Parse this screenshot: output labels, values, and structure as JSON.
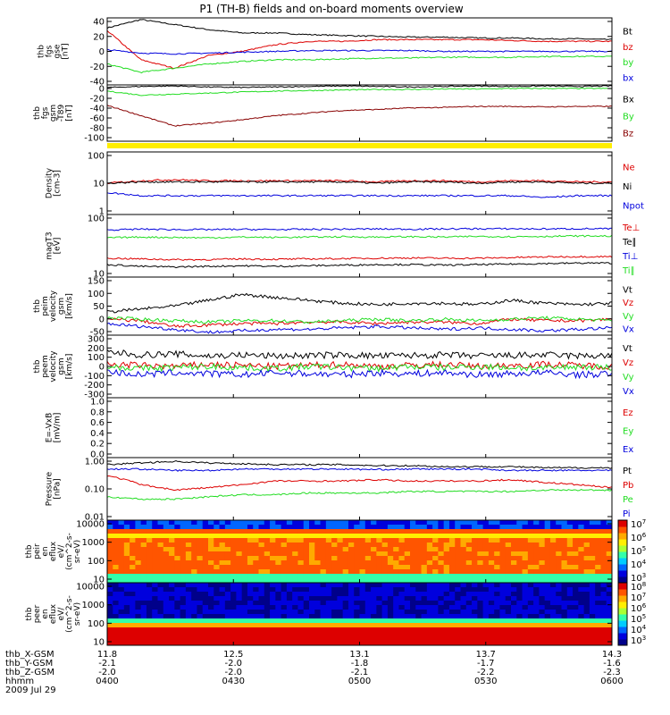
{
  "title": "P1 (TH-B) fields and on-board moments overview",
  "colors": {
    "black": "#000000",
    "red": "#dd0000",
    "green": "#22dd22",
    "blue": "#0000dd",
    "brown": "#880000",
    "yellow": "#ffee00"
  },
  "chart_data": [
    {
      "id": "fgs",
      "type": "line",
      "ylabel": [
        "thb",
        "fgs",
        "gse",
        "[nT]"
      ],
      "ylim": [
        -40,
        40
      ],
      "yticks": [
        "40",
        "20",
        "0",
        "-20",
        "-40"
      ],
      "series": [
        {
          "name": "Bt",
          "color": "black",
          "values": [
            28,
            38,
            32,
            26,
            22,
            22,
            20,
            19,
            18,
            17,
            17,
            16,
            16,
            15,
            15,
            14
          ]
        },
        {
          "name": "bz",
          "color": "red",
          "values": [
            25,
            -10,
            -20,
            -5,
            0,
            8,
            12,
            12,
            14,
            14,
            14,
            14,
            13,
            12,
            12,
            12
          ]
        },
        {
          "name": "by",
          "color": "green",
          "values": [
            -15,
            -25,
            -20,
            -15,
            -12,
            -10,
            -10,
            -9,
            -8,
            -8,
            -7,
            -7,
            -7,
            -6,
            -6,
            -6
          ]
        },
        {
          "name": "bx",
          "color": "blue",
          "values": [
            2,
            -2,
            -3,
            -2,
            -1,
            0,
            1,
            1,
            1,
            1,
            0,
            0,
            0,
            0,
            0,
            0
          ]
        }
      ]
    },
    {
      "id": "fgs_gsm",
      "type": "line",
      "ylabel": [
        "thb",
        "fgs",
        "gsm",
        "-T89",
        "[nT]"
      ],
      "ylim": [
        -110,
        0
      ],
      "yticks": [
        "0",
        "-20",
        "-40",
        "-60",
        "-80",
        "-100"
      ],
      "series": [
        {
          "name": "Bx",
          "color": "black",
          "values": [
            -5,
            -3,
            -2,
            -4,
            -5,
            -4,
            -3,
            -2,
            -3,
            -4,
            -3,
            -2,
            -3,
            -2,
            -3,
            -2
          ]
        },
        {
          "name": "By",
          "color": "green",
          "values": [
            -12,
            -20,
            -18,
            -16,
            -14,
            -12,
            -11,
            -10,
            -9,
            -9,
            -8,
            -8,
            -7,
            -7,
            -7,
            -7
          ]
        },
        {
          "name": "Bz",
          "color": "brown",
          "values": [
            -40,
            -60,
            -80,
            -75,
            -68,
            -60,
            -55,
            -50,
            -48,
            -45,
            -44,
            -42,
            -42,
            -43,
            -42,
            -42
          ]
        }
      ]
    },
    {
      "id": "density",
      "type": "line",
      "scale": "log",
      "ylabel": [
        "Density",
        "[cm-3]"
      ],
      "ylim": [
        1,
        100
      ],
      "yticks": [
        "100",
        "10",
        "1"
      ],
      "series": [
        {
          "name": "Ne",
          "color": "red",
          "values": [
            10,
            12,
            13,
            12,
            12,
            12,
            12,
            12,
            11,
            12,
            12,
            11,
            12,
            12,
            11,
            11
          ]
        },
        {
          "name": "Ni",
          "color": "black",
          "values": [
            10,
            11,
            11,
            11,
            11,
            11,
            11,
            11,
            10,
            11,
            11,
            10,
            11,
            11,
            10,
            10
          ]
        },
        {
          "name": "Npot",
          "color": "blue",
          "values": [
            5,
            4,
            4,
            4,
            4,
            4,
            4,
            4,
            4,
            4,
            4,
            4,
            4,
            3.5,
            4,
            4
          ]
        }
      ]
    },
    {
      "id": "temp",
      "type": "line",
      "scale": "log",
      "ylabel": [
        "magT3",
        "[eV]"
      ],
      "ylim": [
        10,
        1000
      ],
      "yticks": [
        "100",
        "10"
      ],
      "series": [
        {
          "name": "Te⊥",
          "color": "red",
          "values": [
            40,
            38,
            36,
            36,
            38,
            37,
            38,
            39,
            40,
            41,
            40,
            40,
            42,
            44,
            45,
            45
          ]
        },
        {
          "name": "Te∥",
          "color": "black",
          "values": [
            25,
            22,
            21,
            22,
            23,
            22,
            23,
            24,
            25,
            25,
            24,
            25,
            26,
            27,
            28,
            28
          ]
        },
        {
          "name": "Ti⊥",
          "color": "blue",
          "values": [
            320,
            340,
            330,
            330,
            335,
            330,
            335,
            340,
            345,
            340,
            345,
            350,
            350,
            345,
            350,
            350
          ]
        },
        {
          "name": "Ti∥",
          "color": "green",
          "values": [
            180,
            190,
            185,
            180,
            190,
            185,
            190,
            195,
            190,
            195,
            190,
            200,
            195,
            200,
            205,
            205
          ]
        }
      ]
    },
    {
      "id": "peim",
      "type": "line",
      "ylabel": [
        "thb",
        "peim",
        "velocity",
        "gsm",
        "[km/s]"
      ],
      "ylim": [
        -50,
        150
      ],
      "yticks": [
        "150",
        "100",
        "50",
        "0",
        "-50"
      ],
      "series": [
        {
          "name": "Vt",
          "color": "black",
          "values": [
            30,
            40,
            50,
            70,
            90,
            80,
            70,
            60,
            55,
            60,
            60,
            55,
            70,
            60,
            55,
            60
          ]
        },
        {
          "name": "Vz",
          "color": "red",
          "values": [
            5,
            0,
            -20,
            -15,
            -10,
            -10,
            -5,
            -5,
            -10,
            -5,
            -5,
            -10,
            5,
            0,
            0,
            5
          ]
        },
        {
          "name": "Vy",
          "color": "green",
          "values": [
            10,
            5,
            0,
            -5,
            0,
            0,
            -5,
            0,
            5,
            0,
            5,
            0,
            5,
            10,
            5,
            0
          ]
        },
        {
          "name": "Vx",
          "color": "blue",
          "values": [
            -10,
            -20,
            -30,
            -40,
            -35,
            -30,
            -30,
            -25,
            -20,
            -25,
            -30,
            -25,
            -30,
            -35,
            -30,
            -25
          ]
        }
      ]
    },
    {
      "id": "peem",
      "type": "line",
      "ylabel": [
        "thb",
        "peem",
        "velocity",
        "gsm",
        "[km/s]"
      ],
      "ylim": [
        -300,
        300
      ],
      "yticks": [
        "300",
        "200",
        "100",
        "0",
        "-100",
        "-200",
        "-300"
      ],
      "series": [
        {
          "name": "Vt",
          "color": "black",
          "values": [
            140,
            110,
            120,
            100,
            110,
            100,
            105,
            110,
            100,
            105,
            110,
            100,
            105,
            110,
            100,
            105
          ]
        },
        {
          "name": "Vz",
          "color": "red",
          "values": [
            20,
            10,
            0,
            20,
            10,
            0,
            10,
            20,
            0,
            10,
            20,
            0,
            10,
            20,
            10,
            0
          ]
        },
        {
          "name": "Vy",
          "color": "green",
          "values": [
            0,
            -20,
            -10,
            0,
            -10,
            -20,
            0,
            -10,
            -20,
            0,
            -10,
            0,
            -10,
            -20,
            0,
            -10
          ]
        },
        {
          "name": "Vx",
          "color": "blue",
          "values": [
            -50,
            -80,
            -60,
            -70,
            -80,
            -60,
            -70,
            -80,
            -60,
            -70,
            -60,
            -80,
            -70,
            -60,
            -80,
            -70
          ]
        }
      ]
    },
    {
      "id": "efield",
      "type": "line",
      "ylabel": [
        "E=-VxB",
        "[mV/m]"
      ],
      "ylim": [
        0,
        1
      ],
      "yticks": [
        "1.0",
        "0.8",
        "0.6",
        "0.4",
        "0.2",
        "0.0"
      ],
      "series": [
        {
          "name": "Ez",
          "color": "red",
          "values": []
        },
        {
          "name": "Ey",
          "color": "green",
          "values": []
        },
        {
          "name": "Ex",
          "color": "blue",
          "values": []
        }
      ]
    },
    {
      "id": "pressure",
      "type": "line",
      "scale": "log",
      "ylabel": [
        "Pressure",
        "[nPa]"
      ],
      "ylim": [
        0.01,
        1.2
      ],
      "yticks": [
        "1.00",
        "0.10",
        "0.01"
      ],
      "series": [
        {
          "name": "Pt",
          "color": "black",
          "values": [
            0.7,
            0.8,
            0.9,
            0.8,
            0.75,
            0.7,
            0.7,
            0.7,
            0.65,
            0.65,
            0.6,
            0.6,
            0.6,
            0.55,
            0.55,
            0.55
          ]
        },
        {
          "name": "Pb",
          "color": "red",
          "values": [
            0.3,
            0.15,
            0.1,
            0.12,
            0.15,
            0.2,
            0.2,
            0.2,
            0.22,
            0.2,
            0.2,
            0.2,
            0.22,
            0.18,
            0.15,
            0.12
          ]
        },
        {
          "name": "Pe",
          "color": "green",
          "values": [
            0.06,
            0.05,
            0.05,
            0.06,
            0.07,
            0.07,
            0.08,
            0.08,
            0.08,
            0.09,
            0.09,
            0.09,
            0.09,
            0.1,
            0.1,
            0.1
          ]
        },
        {
          "name": "Pi",
          "color": "blue",
          "values": [
            0.5,
            0.5,
            0.45,
            0.45,
            0.5,
            0.5,
            0.5,
            0.5,
            0.48,
            0.5,
            0.5,
            0.5,
            0.45,
            0.45,
            0.45,
            0.45
          ]
        }
      ]
    },
    {
      "id": "peir",
      "type": "heatmap",
      "ylabel": [
        "thb",
        "peir",
        "en",
        "eflux",
        "eV/",
        "(cm^2-s-",
        "sr-eV)"
      ],
      "ylim": [
        10,
        20000
      ],
      "yticks": [
        "10000",
        "1000",
        "100",
        "10"
      ],
      "cbar_ticks": [
        "10^7",
        "10^6",
        "10^5",
        "10^4",
        "10^3"
      ]
    },
    {
      "id": "peer",
      "type": "heatmap",
      "ylabel": [
        "thb",
        "peer",
        "en",
        "eflux",
        "eV/",
        "(cm^2-s-",
        "sr-eV)"
      ],
      "ylim": [
        10,
        20000
      ],
      "yticks": [
        "10000",
        "1000",
        "100",
        "10"
      ],
      "cbar_ticks": [
        "10^8",
        "10^7",
        "10^6",
        "10^5",
        "10^4",
        "10^3"
      ]
    }
  ],
  "footer": {
    "labels": [
      "thb_X-GSM",
      "thb_Y-GSM",
      "thb_Z-GSM",
      "hhmm",
      "2009 Jul 29"
    ],
    "columns": [
      [
        "11.8",
        "-2.1",
        "-2.0",
        "0400"
      ],
      [
        "12.5",
        "-2.0",
        "-2.0",
        "0430"
      ],
      [
        "13.1",
        "-1.8",
        "-2.1",
        "0500"
      ],
      [
        "13.7",
        "-1.7",
        "-2.2",
        "0530"
      ],
      [
        "14.3",
        "-1.6",
        "-2.3",
        "0600"
      ]
    ]
  }
}
